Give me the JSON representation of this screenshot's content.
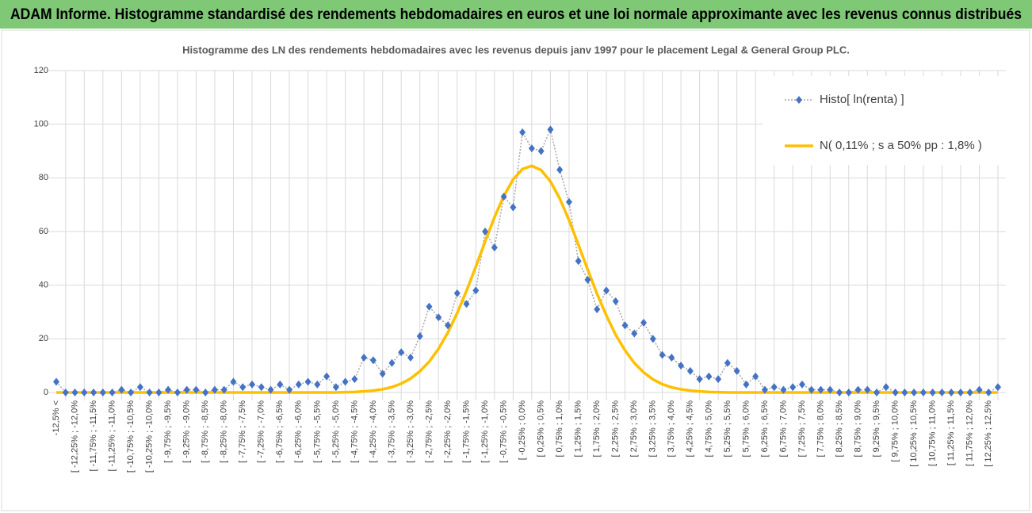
{
  "header": {
    "title": "ADAM Informe. Histogramme standardisé des rendements hebdomadaires en euros et une loi normale approximante avec les revenus connus distribués"
  },
  "chart_data": {
    "type": "line",
    "title": "Histogramme des LN des rendements hebdomadaires avec les revenus depuis janv 1997 pour le placement Legal & General Group PLC.",
    "categories": [
      "-12,5% <",
      null,
      "[ -12,25% ; -12,0%",
      null,
      "[ -11,75% ; -11,5%",
      null,
      "[ -11,25% ; -11,0%",
      null,
      "[ -10,75% ; -10,5%",
      null,
      "[ -10,25% ; -10,0%",
      null,
      "[ -9,75% ; -9,5%",
      null,
      "[ -9,25% ; -9,0%",
      null,
      "[ -8,75% ; -8,5%",
      null,
      "[ -8,25% ; -8,0%",
      null,
      "[ -7,75% ; -7,5%",
      null,
      "[ -7,25% ; -7,0%",
      null,
      "[ -6,75% ; -6,5%",
      null,
      "[ -6,25% ; -6,0%",
      null,
      "[ -5,75% ; -5,5%",
      null,
      "[ -5,25% ; -5,0%",
      null,
      "[ -4,75% ; -4,5%",
      null,
      "[ -4,25% ; -4,0%",
      null,
      "[ -3,75% ; -3,5%",
      null,
      "[ -3,25% ; -3,0%",
      null,
      "[ -2,75% ; -2,5%",
      null,
      "[ -2,25% ; -2,0%",
      null,
      "[ -1,75% ; -1,5%",
      null,
      "[ -1,25% ; -1,0%",
      null,
      "[ -0,75% ; -0,5%",
      null,
      "[ -0,25% ; 0,0%",
      null,
      "[ 0,25% ; 0,5%",
      null,
      "[ 0,75% ; 1,0%",
      null,
      "[ 1,25% ; 1,5%",
      null,
      "[ 1,75% ; 2,0%",
      null,
      "[ 2,25% ; 2,5%",
      null,
      "[ 2,75% ; 3,0%",
      null,
      "[ 3,25% ; 3,5%",
      null,
      "[ 3,75% ; 4,0%",
      null,
      "[ 4,25% ; 4,5%",
      null,
      "[ 4,75% ; 5,0%",
      null,
      "[ 5,25% ; 5,5%",
      null,
      "[ 5,75% ; 6,0%",
      null,
      "[ 6,25% ; 6,5%",
      null,
      "[ 6,75% ; 7,0%",
      null,
      "[ 7,25% ; 7,5%",
      null,
      "[ 7,75% ; 8,0%",
      null,
      "[ 8,25% ; 8,5%",
      null,
      "[ 8,75% ; 9,0%",
      null,
      "[ 9,25% ; 9,5%",
      null,
      "[ 9,75% ; 10,0%",
      null,
      "[ 10,25% ; 10,5%",
      null,
      "[ 10,75% ; 11,0%",
      null,
      "[ 11,25% ; 11,5%",
      null,
      "[ 11,75% ; 12,0%",
      null,
      "[ 12,25% ; 12,5%",
      null
    ],
    "series": [
      {
        "name": "Histo[ ln(renta) ]",
        "color": "#4472c4",
        "line_color": "#a6a6a6",
        "values": [
          4,
          0,
          0,
          0,
          0,
          0,
          0,
          1,
          0,
          2,
          0,
          0,
          1,
          0,
          1,
          1,
          0,
          1,
          1,
          4,
          2,
          3,
          2,
          1,
          3,
          1,
          3,
          4,
          3,
          6,
          2,
          4,
          5,
          13,
          12,
          7,
          11,
          15,
          13,
          21,
          32,
          28,
          25,
          37,
          33,
          38,
          60,
          54,
          73,
          69,
          97,
          91,
          90,
          98,
          83,
          71,
          49,
          42,
          31,
          38,
          34,
          25,
          22,
          26,
          20,
          14,
          13,
          10,
          8,
          5,
          6,
          5,
          11,
          8,
          3,
          6,
          1,
          2,
          1,
          2,
          3,
          1,
          1,
          1,
          0,
          0,
          1,
          1,
          0,
          2,
          0,
          0,
          0,
          0,
          0,
          0,
          0,
          0,
          0,
          1,
          0,
          2
        ]
      },
      {
        "name": "N( 0,11% ; s a 50% pp : 1,8% )",
        "color": "#ffc000",
        "values": [
          0,
          0,
          0,
          0,
          0,
          0,
          0,
          0,
          0,
          0,
          0,
          0,
          0,
          0,
          0,
          0,
          0,
          0,
          0,
          0,
          0,
          0,
          0,
          0,
          0,
          0,
          0,
          0,
          0,
          0,
          0,
          0.1,
          0.2,
          0.4,
          0.7,
          1.2,
          2.0,
          3.3,
          5.2,
          7.9,
          11.5,
          16.3,
          22.3,
          29.6,
          37.9,
          46.9,
          56.3,
          65.3,
          73.2,
          79.4,
          83.3,
          84.5,
          82.9,
          78.7,
          72.3,
          64.2,
          55.1,
          45.8,
          36.8,
          28.7,
          21.5,
          15.7,
          11.0,
          7.5,
          4.9,
          3.1,
          1.9,
          1.2,
          0.7,
          0.4,
          0.2,
          0.1,
          0,
          0,
          0,
          0,
          0,
          0,
          0,
          0,
          0,
          0,
          0,
          0,
          0,
          0,
          0,
          0,
          0,
          0,
          0,
          0,
          0,
          0,
          0,
          0,
          0,
          0,
          0,
          0,
          0,
          0
        ]
      }
    ],
    "ylim": [
      0,
      120
    ],
    "yticks": [
      0,
      20,
      40,
      60,
      80,
      100,
      120
    ],
    "grid": true,
    "legend": "upper right"
  }
}
